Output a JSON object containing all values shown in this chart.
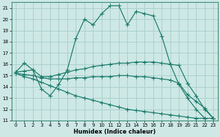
{
  "xlabel": "Humidex (Indice chaleur)",
  "bg_color": "#cde8e5",
  "grid_color": "#aacfcc",
  "line_color": "#1a7a6a",
  "xlim": [
    -0.5,
    23.5
  ],
  "ylim": [
    11,
    21.5
  ],
  "yticks": [
    11,
    12,
    13,
    14,
    15,
    16,
    17,
    18,
    19,
    20,
    21
  ],
  "xticks": [
    0,
    1,
    2,
    3,
    4,
    5,
    6,
    7,
    8,
    9,
    10,
    11,
    12,
    13,
    14,
    15,
    16,
    17,
    18,
    19,
    20,
    21,
    22,
    23
  ],
  "lines": [
    {
      "x": [
        0,
        1,
        2,
        3,
        4,
        5,
        6,
        7,
        8,
        9,
        10,
        11,
        12,
        13,
        14,
        15,
        16,
        17,
        18,
        19,
        20,
        21,
        22
      ],
      "y": [
        15.3,
        16.1,
        15.5,
        13.8,
        13.2,
        14.2,
        15.5,
        18.3,
        20.0,
        19.5,
        20.5,
        21.2,
        21.2,
        19.5,
        20.7,
        20.5,
        20.3,
        18.5,
        16.0,
        14.2,
        13.0,
        12.0,
        11.2
      ]
    },
    {
      "x": [
        0,
        1,
        2,
        3,
        4,
        5,
        6,
        7,
        8,
        9,
        10,
        11,
        12,
        13,
        14,
        15,
        16,
        17,
        18,
        19,
        20,
        21,
        22,
        23
      ],
      "y": [
        15.3,
        15.4,
        15.5,
        14.9,
        14.9,
        15.1,
        15.3,
        15.5,
        15.6,
        15.8,
        15.9,
        16.0,
        16.1,
        16.1,
        16.2,
        16.2,
        16.2,
        16.1,
        16.0,
        15.9,
        14.3,
        13.2,
        12.0,
        11.2
      ]
    },
    {
      "x": [
        0,
        1,
        2,
        3,
        4,
        5,
        6,
        7,
        8,
        9,
        10,
        11,
        12,
        13,
        14,
        15,
        16,
        17,
        18,
        19,
        20,
        21,
        22,
        23
      ],
      "y": [
        15.2,
        15.1,
        15.0,
        14.8,
        14.7,
        14.7,
        14.7,
        14.8,
        14.8,
        14.9,
        14.9,
        14.9,
        15.0,
        15.0,
        14.9,
        14.9,
        14.8,
        14.7,
        14.6,
        14.3,
        13.3,
        12.7,
        12.1,
        11.2
      ]
    },
    {
      "x": [
        0,
        1,
        2,
        3,
        4,
        5,
        6,
        7,
        8,
        9,
        10,
        11,
        12,
        13,
        14,
        15,
        16,
        17,
        18,
        19,
        20,
        21,
        22,
        23
      ],
      "y": [
        15.2,
        14.9,
        14.7,
        14.4,
        14.1,
        13.8,
        13.5,
        13.2,
        13.0,
        12.8,
        12.6,
        12.4,
        12.2,
        12.0,
        11.9,
        11.8,
        11.7,
        11.6,
        11.5,
        11.4,
        11.3,
        11.2,
        11.2,
        11.2
      ]
    }
  ]
}
